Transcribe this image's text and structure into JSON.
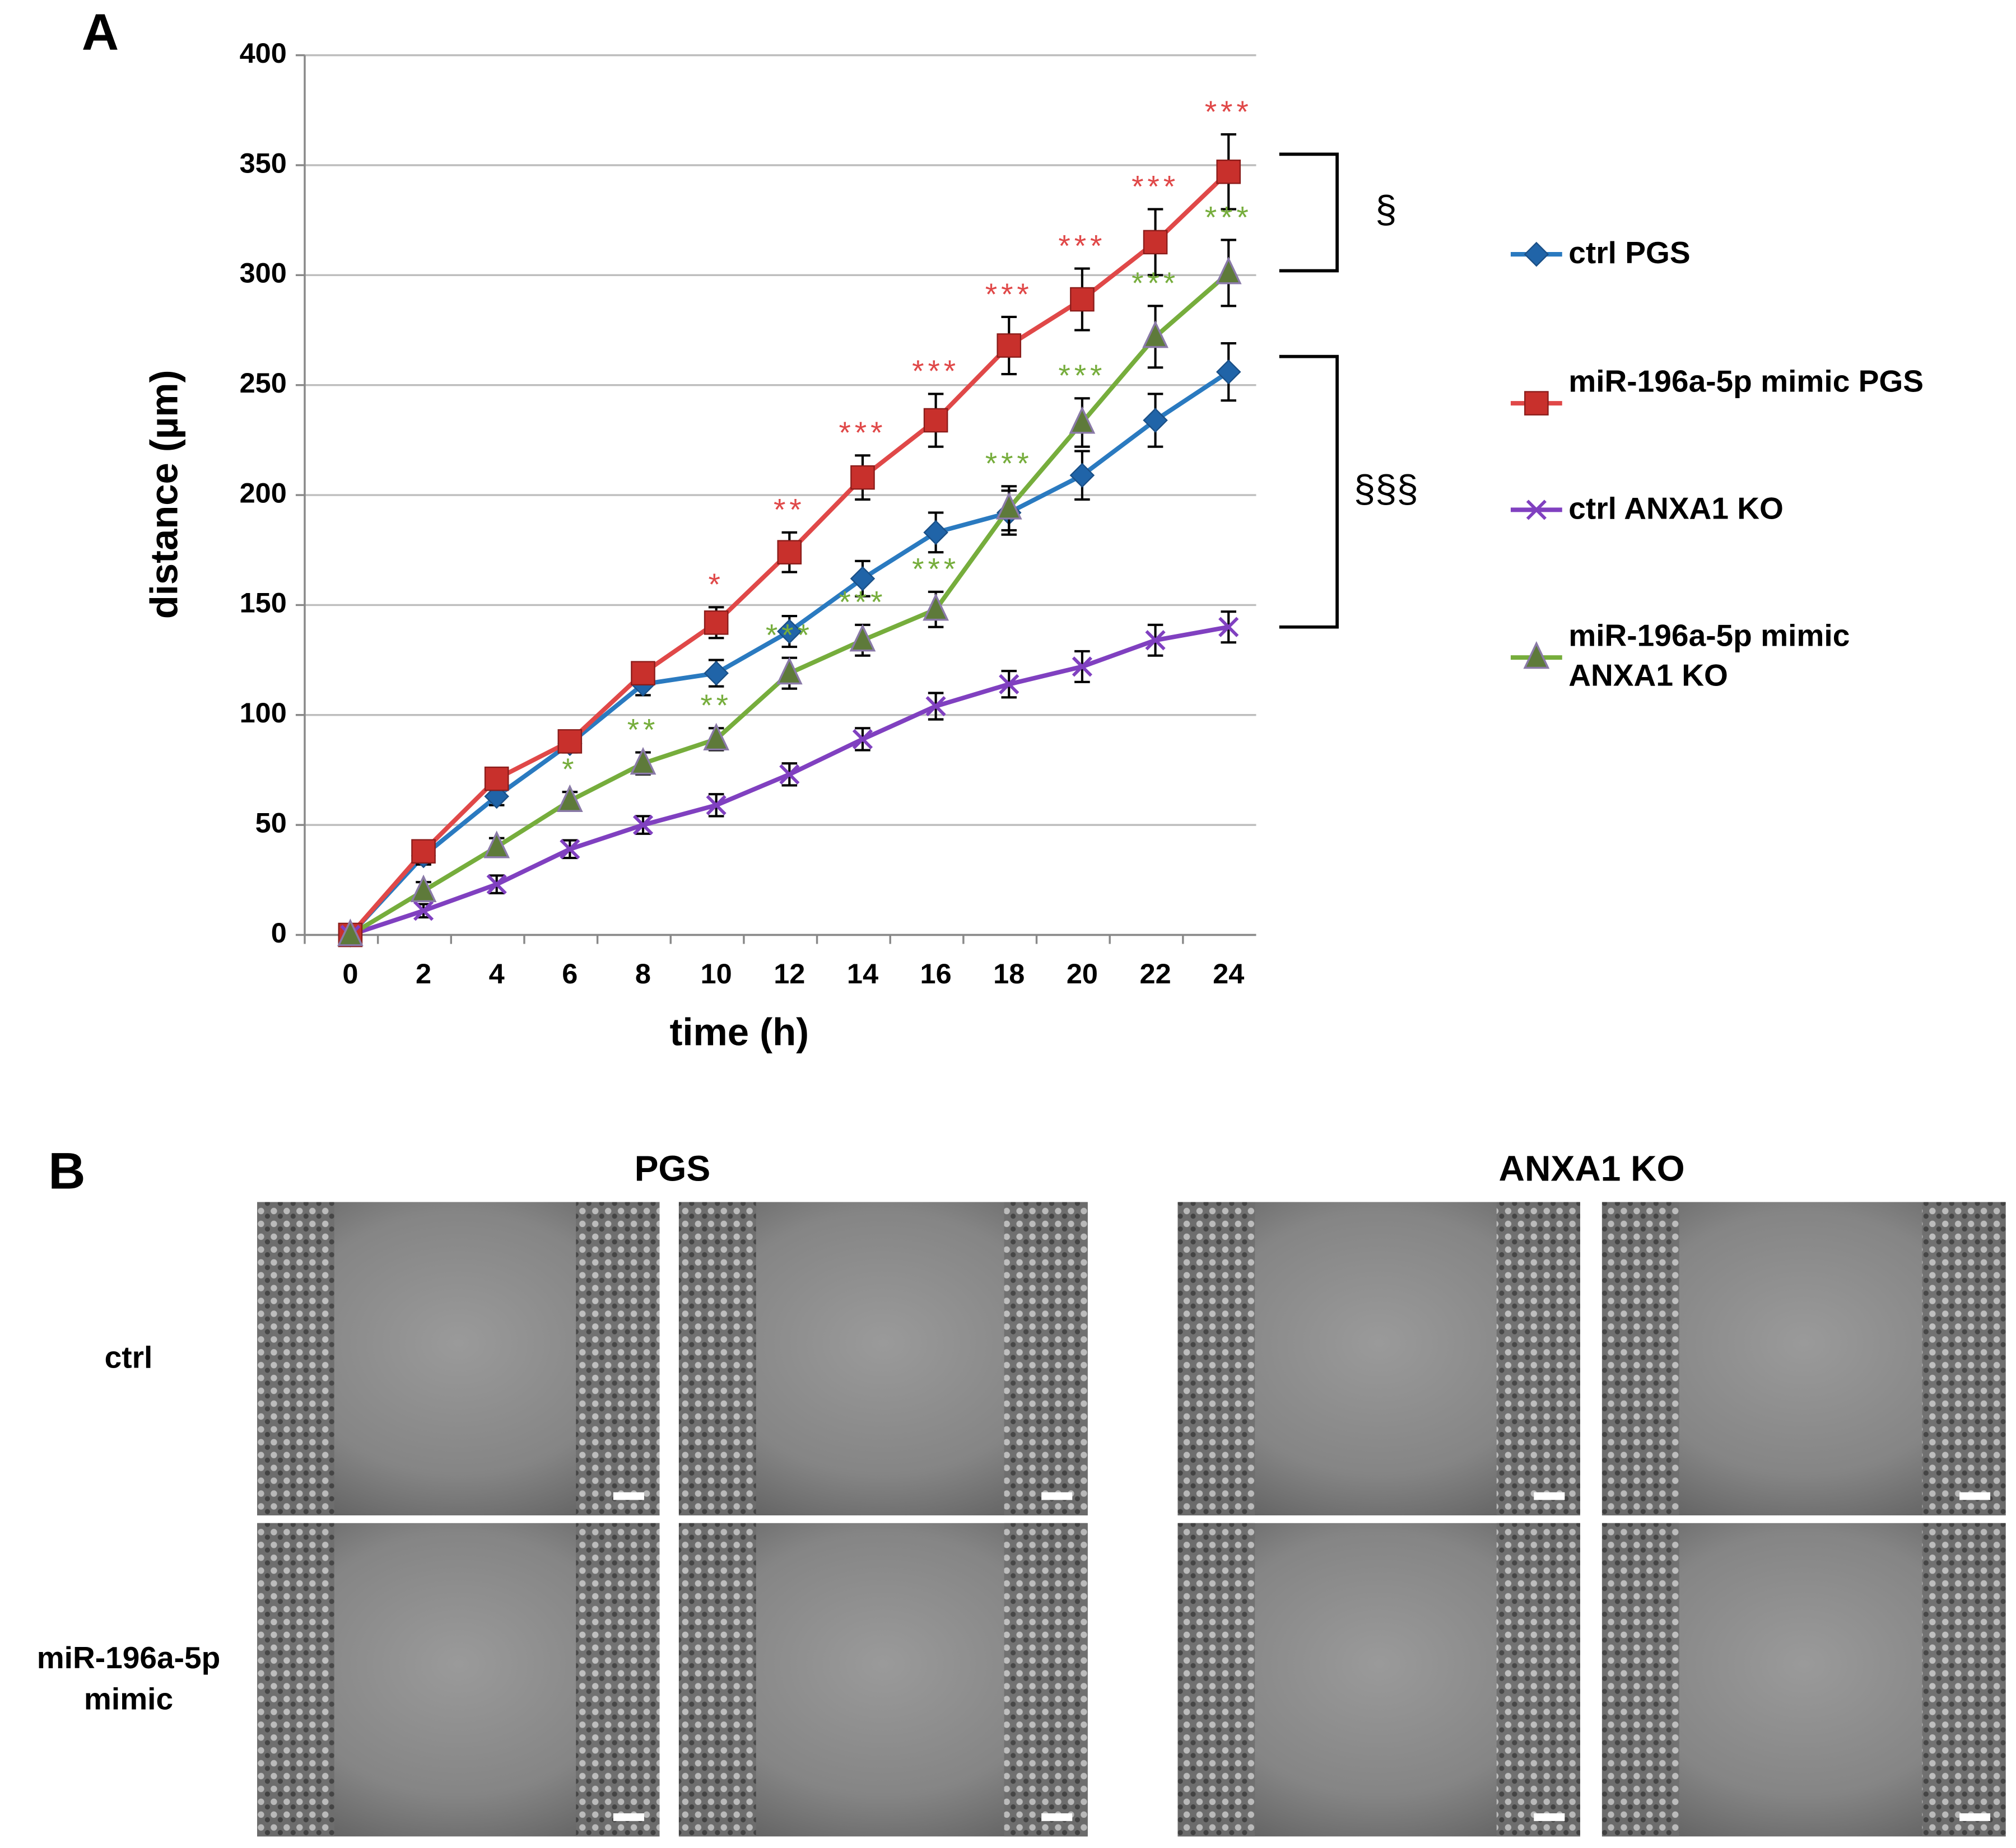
{
  "chart_data": {
    "type": "line",
    "panel_label": "A",
    "x_label": "time (h)",
    "y_label": "distance (µm)",
    "categories": [
      "0",
      "2",
      "4",
      "6",
      "8",
      "10",
      "12",
      "14",
      "16",
      "18",
      "20",
      "22",
      "24"
    ],
    "ylim": [
      0,
      400
    ],
    "yticks": [
      0,
      50,
      100,
      150,
      200,
      250,
      300,
      350,
      400
    ],
    "grid": true,
    "series": [
      {
        "name": "ctrl PGS",
        "color": "#2a7ac0",
        "marker": "diamond",
        "values": [
          0,
          36,
          63,
          87,
          114,
          119,
          138,
          162,
          183,
          192,
          209,
          234,
          256
        ],
        "errors": [
          0,
          4,
          4,
          4,
          5,
          6,
          7,
          8,
          9,
          10,
          11,
          12,
          13
        ],
        "significance": [
          null,
          null,
          null,
          null,
          null,
          null,
          null,
          null,
          null,
          null,
          null,
          null,
          null
        ]
      },
      {
        "name": "miR-196a-5p mimic PGS",
        "color": "#e04848",
        "marker": "square",
        "values": [
          0,
          38,
          71,
          88,
          119,
          142,
          174,
          208,
          234,
          268,
          289,
          315,
          347
        ],
        "errors": [
          0,
          4,
          5,
          4,
          5,
          7,
          9,
          10,
          12,
          13,
          14,
          15,
          17
        ],
        "significance": [
          null,
          null,
          null,
          null,
          null,
          "*",
          "**",
          "***",
          "***",
          "***",
          "***",
          "***",
          "***"
        ]
      },
      {
        "name": "ctrl ANXA1 KO",
        "color": "#8040c0",
        "marker": "x",
        "values": [
          0,
          11,
          23,
          39,
          50,
          59,
          73,
          89,
          104,
          114,
          122,
          134,
          140
        ],
        "errors": [
          0,
          3,
          4,
          4,
          4,
          5,
          5,
          5,
          6,
          6,
          7,
          7,
          7
        ],
        "significance": [
          null,
          null,
          null,
          null,
          null,
          null,
          null,
          null,
          null,
          null,
          null,
          null,
          null
        ]
      },
      {
        "name": "miR-196a-5p mimic ANXA1 KO",
        "color": "#76ad3c",
        "marker": "triangle",
        "values": [
          0,
          20,
          40,
          61,
          78,
          89,
          119,
          134,
          148,
          194,
          233,
          272,
          301
        ],
        "errors": [
          0,
          4,
          4,
          4,
          5,
          5,
          7,
          7,
          8,
          10,
          11,
          14,
          15
        ],
        "significance": [
          null,
          null,
          null,
          "*",
          "**",
          "**",
          "***",
          "***",
          "***",
          "***",
          "***",
          "***",
          "***"
        ]
      }
    ],
    "brackets": [
      {
        "label": "§",
        "range": [
          302,
          355
        ]
      },
      {
        "label": "§§§",
        "range": [
          140,
          263
        ]
      }
    ]
  },
  "panel_b": {
    "label": "B",
    "columns": [
      "PGS",
      "ANXA1 KO"
    ],
    "rows": [
      "ctrl",
      "miR-196a-5p mimic"
    ]
  }
}
